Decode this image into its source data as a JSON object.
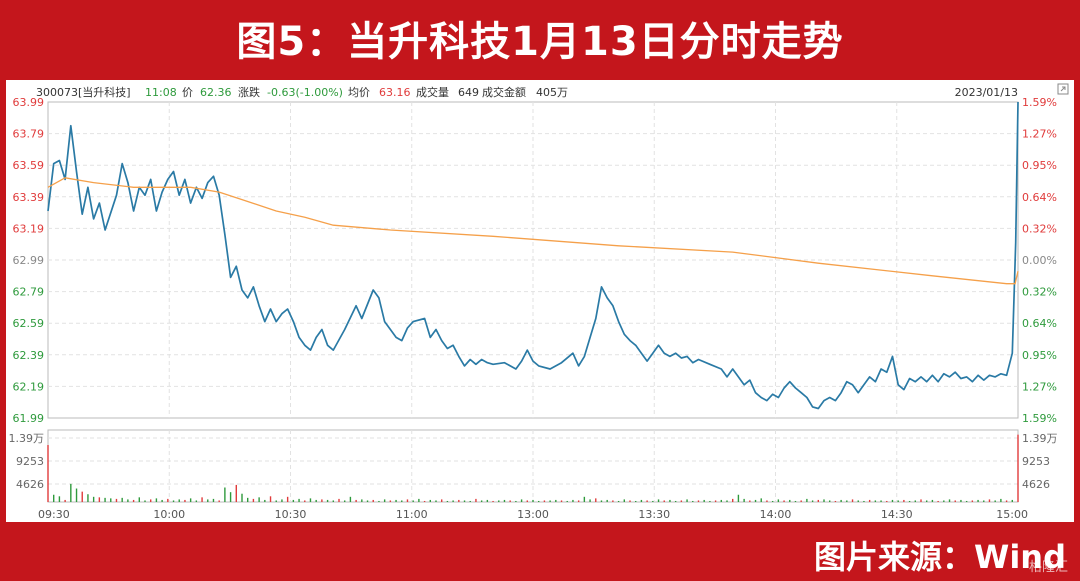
{
  "banner": {
    "title": "图5：当升科技1月13日分时走势"
  },
  "source": {
    "text": "图片来源：Wind"
  },
  "watermark": {
    "text": "格隆汇"
  },
  "header": {
    "code": "300073[当升科技]",
    "time": "11:08",
    "price_label": "价",
    "price": "62.36",
    "change_label": "涨跌",
    "change": "-0.63(-1.00%)",
    "avg_label": "均价",
    "avg": "63.16",
    "volume_label": "成交量",
    "volume": "649",
    "amount_label": "成交金额",
    "amount": "405万",
    "date": "2023/01/13"
  },
  "colors": {
    "price_line": "#2a7aa5",
    "avg_line": "#f5a04a",
    "up": "#e03b3b",
    "down": "#2e9a3c",
    "neutral": "#888888"
  },
  "chart_data": {
    "type": "line",
    "x_tick_labels": [
      "09:30",
      "10:00",
      "10:30",
      "11:00",
      "13:00",
      "13:30",
      "14:00",
      "14:30",
      "15:00"
    ],
    "y_left_ticks": [
      "63.99",
      "63.79",
      "63.59",
      "63.39",
      "63.19",
      "62.99",
      "62.79",
      "62.59",
      "62.39",
      "62.19",
      "61.99"
    ],
    "y_right_ticks": [
      "1.59%",
      "1.27%",
      "0.95%",
      "0.64%",
      "0.32%",
      "0.00%",
      "0.32%",
      "0.64%",
      "0.95%",
      "1.27%",
      "1.59%"
    ],
    "ylim": [
      61.99,
      63.99
    ],
    "prev_close": 62.99,
    "volume_ticks_left": [
      "1.39万",
      "9253",
      "4626"
    ],
    "volume_ticks_right": [
      "1.39万",
      "9253",
      "4626"
    ],
    "volume_max": 13900,
    "series": [
      {
        "name": "price",
        "points": [
          [
            0,
            63.3
          ],
          [
            1,
            63.6
          ],
          [
            2,
            63.62
          ],
          [
            3,
            63.5
          ],
          [
            4,
            63.84
          ],
          [
            5,
            63.55
          ],
          [
            6,
            63.28
          ],
          [
            7,
            63.45
          ],
          [
            8,
            63.25
          ],
          [
            9,
            63.35
          ],
          [
            10,
            63.18
          ],
          [
            12,
            63.4
          ],
          [
            13,
            63.6
          ],
          [
            14,
            63.48
          ],
          [
            15,
            63.3
          ],
          [
            16,
            63.45
          ],
          [
            17,
            63.4
          ],
          [
            18,
            63.5
          ],
          [
            19,
            63.3
          ],
          [
            20,
            63.42
          ],
          [
            21,
            63.5
          ],
          [
            22,
            63.55
          ],
          [
            23,
            63.4
          ],
          [
            24,
            63.5
          ],
          [
            25,
            63.35
          ],
          [
            26,
            63.45
          ],
          [
            27,
            63.38
          ],
          [
            28,
            63.48
          ],
          [
            29,
            63.52
          ],
          [
            30,
            63.4
          ],
          [
            31,
            63.15
          ],
          [
            32,
            62.88
          ],
          [
            33,
            62.95
          ],
          [
            34,
            62.8
          ],
          [
            35,
            62.75
          ],
          [
            36,
            62.82
          ],
          [
            37,
            62.7
          ],
          [
            38,
            62.6
          ],
          [
            39,
            62.68
          ],
          [
            40,
            62.6
          ],
          [
            41,
            62.65
          ],
          [
            42,
            62.68
          ],
          [
            43,
            62.6
          ],
          [
            44,
            62.5
          ],
          [
            45,
            62.45
          ],
          [
            46,
            62.42
          ],
          [
            47,
            62.5
          ],
          [
            48,
            62.55
          ],
          [
            49,
            62.45
          ],
          [
            50,
            62.42
          ],
          [
            52,
            62.55
          ],
          [
            54,
            62.7
          ],
          [
            55,
            62.62
          ],
          [
            57,
            62.8
          ],
          [
            58,
            62.75
          ],
          [
            59,
            62.6
          ],
          [
            60,
            62.55
          ],
          [
            61,
            62.5
          ],
          [
            62,
            62.48
          ],
          [
            63,
            62.56
          ],
          [
            64,
            62.6
          ],
          [
            66,
            62.62
          ],
          [
            67,
            62.5
          ],
          [
            68,
            62.55
          ],
          [
            69,
            62.48
          ],
          [
            70,
            62.43
          ],
          [
            71,
            62.45
          ],
          [
            72,
            62.38
          ],
          [
            73,
            62.32
          ],
          [
            74,
            62.36
          ],
          [
            75,
            62.33
          ],
          [
            76,
            62.36
          ],
          [
            77,
            62.34
          ],
          [
            78,
            62.33
          ],
          [
            80,
            62.34
          ],
          [
            82,
            62.3
          ],
          [
            83,
            62.35
          ],
          [
            84,
            62.42
          ],
          [
            85,
            62.35
          ],
          [
            86,
            62.32
          ],
          [
            88,
            62.3
          ],
          [
            90,
            62.34
          ],
          [
            92,
            62.4
          ],
          [
            93,
            62.32
          ],
          [
            94,
            62.38
          ],
          [
            95,
            62.5
          ],
          [
            96,
            62.62
          ],
          [
            97,
            62.82
          ],
          [
            98,
            62.75
          ],
          [
            99,
            62.7
          ],
          [
            100,
            62.6
          ],
          [
            101,
            62.52
          ],
          [
            102,
            62.48
          ],
          [
            103,
            62.45
          ],
          [
            104,
            62.4
          ],
          [
            105,
            62.35
          ],
          [
            106,
            62.4
          ],
          [
            107,
            62.45
          ],
          [
            108,
            62.4
          ],
          [
            109,
            62.38
          ],
          [
            110,
            62.4
          ],
          [
            111,
            62.37
          ],
          [
            112,
            62.38
          ],
          [
            113,
            62.34
          ],
          [
            114,
            62.36
          ],
          [
            116,
            62.33
          ],
          [
            118,
            62.3
          ],
          [
            119,
            62.25
          ],
          [
            120,
            62.3
          ],
          [
            121,
            62.25
          ],
          [
            122,
            62.2
          ],
          [
            123,
            62.23
          ],
          [
            124,
            62.15
          ],
          [
            125,
            62.12
          ],
          [
            126,
            62.1
          ],
          [
            127,
            62.14
          ],
          [
            128,
            62.12
          ],
          [
            129,
            62.18
          ],
          [
            130,
            62.22
          ],
          [
            131,
            62.18
          ],
          [
            132,
            62.15
          ],
          [
            133,
            62.12
          ],
          [
            134,
            62.06
          ],
          [
            135,
            62.05
          ],
          [
            136,
            62.1
          ],
          [
            137,
            62.12
          ],
          [
            138,
            62.1
          ],
          [
            139,
            62.15
          ],
          [
            140,
            62.22
          ],
          [
            141,
            62.2
          ],
          [
            142,
            62.15
          ],
          [
            143,
            62.2
          ],
          [
            144,
            62.25
          ],
          [
            145,
            62.22
          ],
          [
            146,
            62.3
          ],
          [
            147,
            62.28
          ],
          [
            148,
            62.38
          ],
          [
            149,
            62.2
          ],
          [
            150,
            62.17
          ],
          [
            151,
            62.24
          ],
          [
            152,
            62.22
          ],
          [
            153,
            62.25
          ],
          [
            154,
            62.22
          ],
          [
            155,
            62.26
          ],
          [
            156,
            62.22
          ],
          [
            157,
            62.27
          ],
          [
            158,
            62.25
          ],
          [
            159,
            62.28
          ],
          [
            160,
            62.24
          ],
          [
            161,
            62.25
          ],
          [
            162,
            62.22
          ],
          [
            163,
            62.26
          ],
          [
            164,
            62.23
          ],
          [
            165,
            62.26
          ],
          [
            166,
            62.25
          ],
          [
            167,
            62.27
          ],
          [
            168,
            62.26
          ],
          [
            169,
            62.4
          ],
          [
            169.6,
            63.1
          ],
          [
            170,
            63.99
          ]
        ]
      },
      {
        "name": "avg",
        "points": [
          [
            0,
            63.45
          ],
          [
            3,
            63.51
          ],
          [
            8,
            63.48
          ],
          [
            15,
            63.45
          ],
          [
            25,
            63.45
          ],
          [
            30,
            63.42
          ],
          [
            35,
            63.36
          ],
          [
            40,
            63.3
          ],
          [
            45,
            63.26
          ],
          [
            50,
            63.21
          ],
          [
            60,
            63.18
          ],
          [
            78,
            63.14
          ],
          [
            100,
            63.08
          ],
          [
            120,
            63.04
          ],
          [
            135,
            62.97
          ],
          [
            155,
            62.89
          ],
          [
            168,
            62.84
          ],
          [
            169.5,
            62.84
          ],
          [
            170,
            62.92
          ]
        ]
      }
    ],
    "volume": [
      11000,
      1400,
      1100,
      400,
      3500,
      2600,
      2000,
      1500,
      1000,
      900,
      800,
      700,
      600,
      800,
      500,
      400,
      900,
      300,
      500,
      700,
      400,
      600,
      300,
      500,
      400,
      700,
      300,
      900,
      500,
      600,
      300,
      2800,
      1900,
      3300,
      1600,
      800,
      600,
      900,
      400,
      1100,
      300,
      500,
      1000,
      400,
      600,
      300,
      700,
      400,
      500,
      400,
      300,
      600,
      300,
      1000,
      400,
      500,
      300,
      400,
      200,
      500,
      300,
      400,
      300,
      500,
      300,
      600,
      200,
      400,
      300,
      500,
      200,
      300,
      400,
      300,
      200,
      600,
      300,
      400,
      200,
      300,
      400,
      300,
      200,
      500,
      300,
      400,
      200,
      300,
      300,
      400,
      300,
      200,
      400,
      300,
      1000,
      500,
      700,
      300,
      400,
      300,
      200,
      500,
      300,
      200,
      400,
      300,
      200,
      500,
      300,
      400,
      200,
      300,
      500,
      200,
      300,
      400,
      200,
      300,
      400,
      300,
      600,
      1400,
      600,
      300,
      400,
      700,
      300,
      200,
      500,
      300,
      400,
      200,
      300,
      600,
      300,
      400,
      500,
      300,
      200,
      400,
      300,
      500,
      300,
      200,
      400,
      300,
      300,
      200,
      400,
      300,
      400,
      200,
      300,
      500,
      300,
      400,
      200,
      300,
      500,
      300,
      400,
      200,
      300,
      400,
      300,
      500,
      300,
      600,
      300,
      400,
      13000
    ]
  }
}
